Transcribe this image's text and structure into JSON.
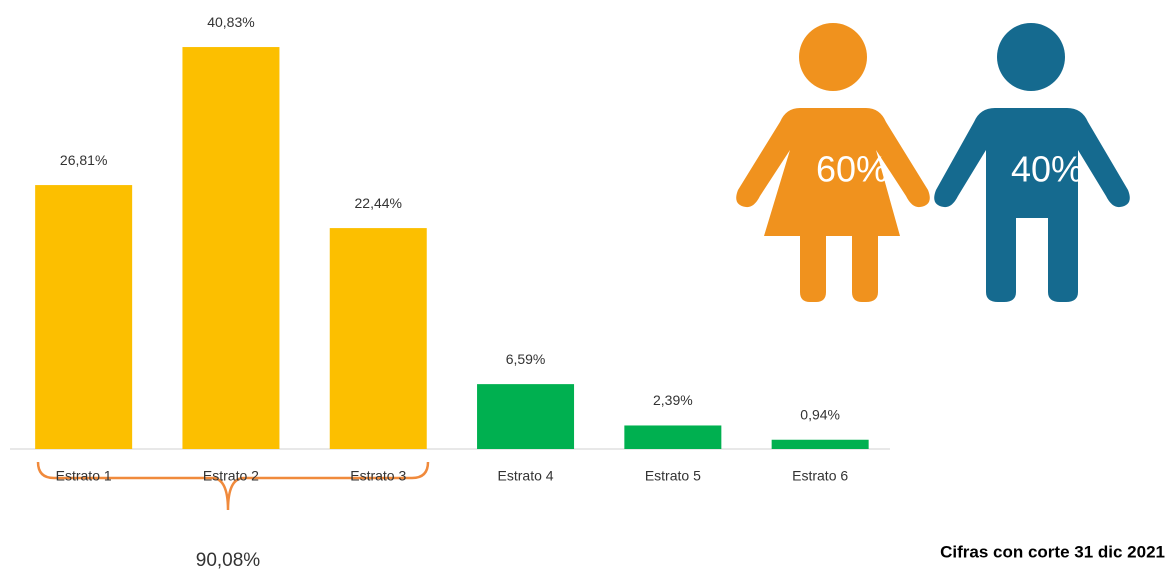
{
  "chart_data": {
    "type": "bar",
    "categories": [
      "Estrato 1",
      "Estrato 2",
      "Estrato 3",
      "Estrato 4",
      "Estrato 5",
      "Estrato 6"
    ],
    "values": [
      26.81,
      40.83,
      22.44,
      6.59,
      2.39,
      0.94
    ],
    "value_labels": [
      "26,81%",
      "40,83%",
      "22,44%",
      "6,59%",
      "2,39%",
      "0,94%"
    ],
    "colors": [
      "#fcbf00",
      "#fcbf00",
      "#fcbf00",
      "#00b050",
      "#00b050",
      "#00b050"
    ],
    "ylim": [
      0,
      45
    ],
    "group_total": "90,08%",
    "gender": [
      {
        "label": "60%",
        "value": 60,
        "color": "#f0921e"
      },
      {
        "label": "40%",
        "value": 40,
        "color": "#156a8f"
      }
    ],
    "note": "Cifras con corte 31 dic 2021"
  }
}
